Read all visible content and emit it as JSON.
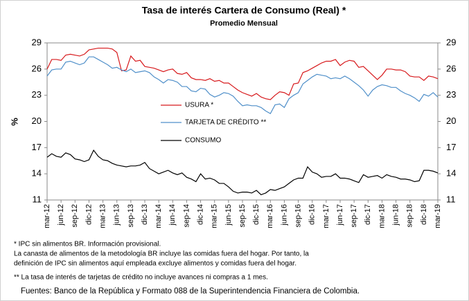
{
  "chart_data": {
    "type": "line",
    "title": "Tasa de interés Cartera de Consumo (Real) *",
    "subtitle": "Promedio Mensual",
    "ylabel": "%",
    "categories": [
      "mar-12",
      null,
      null,
      "jun-12",
      null,
      null,
      "sep-12",
      null,
      null,
      "dic-12",
      null,
      null,
      "mar-13",
      null,
      null,
      "jun-13",
      null,
      null,
      "sep-13",
      null,
      null,
      "dic-13",
      null,
      null,
      "mar-14",
      null,
      null,
      "jun-14",
      null,
      null,
      "sep-14",
      null,
      null,
      "dic-14",
      null,
      null,
      "mar-15",
      null,
      null,
      "jun-15",
      null,
      null,
      "sep-15",
      null,
      null,
      "dic-15",
      null,
      null,
      "mar-16",
      null,
      null,
      "jun-16",
      null,
      null,
      "sep-16",
      null,
      null,
      "dic-16",
      null,
      null,
      "mar-17",
      null,
      null,
      "jun-17",
      null,
      null,
      "sep-17",
      null,
      null,
      "dic-17",
      null,
      null,
      "mar-18",
      null,
      null,
      "jun-18",
      null,
      null,
      "sep-18",
      null,
      null,
      "dic-18",
      null,
      null,
      "mar-19"
    ],
    "series": [
      {
        "name": "USURA *",
        "color": "#d7191c",
        "values": [
          26.0,
          27.1,
          27.1,
          27.0,
          27.6,
          27.7,
          27.6,
          27.5,
          27.7,
          28.2,
          28.3,
          28.4,
          28.4,
          28.4,
          28.3,
          27.9,
          25.8,
          25.9,
          27.5,
          26.9,
          27.0,
          26.3,
          26.2,
          26.1,
          25.9,
          25.7,
          25.9,
          26.0,
          25.5,
          25.4,
          25.6,
          25.0,
          24.8,
          24.8,
          24.7,
          24.9,
          24.6,
          24.7,
          24.4,
          24.4,
          24.0,
          23.6,
          23.3,
          23.1,
          22.9,
          23.2,
          22.8,
          22.6,
          22.5,
          23.0,
          23.4,
          23.3,
          23.0,
          24.3,
          24.4,
          25.6,
          25.8,
          26.1,
          26.4,
          26.7,
          26.9,
          26.9,
          27.1,
          26.4,
          26.8,
          27.0,
          26.9,
          26.2,
          26.3,
          25.8,
          25.3,
          24.8,
          25.3,
          26.0,
          26.0,
          25.9,
          25.9,
          25.7,
          25.2,
          25.1,
          25.1,
          24.7,
          25.2,
          25.1,
          24.9
        ]
      },
      {
        "name": "TARJETA DE CRÉDITO **",
        "color": "#4f8fc9",
        "values": [
          25.2,
          25.9,
          26.0,
          26.0,
          26.8,
          26.9,
          26.7,
          26.5,
          26.7,
          27.4,
          27.4,
          27.1,
          26.8,
          26.5,
          26.1,
          26.2,
          25.9,
          25.7,
          26.0,
          25.6,
          25.7,
          25.8,
          25.6,
          25.1,
          24.8,
          24.4,
          24.8,
          24.7,
          24.5,
          24.0,
          24.0,
          23.5,
          23.4,
          23.8,
          23.7,
          23.1,
          22.8,
          23.0,
          23.3,
          23.2,
          22.9,
          22.3,
          21.8,
          21.9,
          21.8,
          21.8,
          21.6,
          21.2,
          20.9,
          21.9,
          22.0,
          21.6,
          22.6,
          23.0,
          23.3,
          24.3,
          24.7,
          25.1,
          25.4,
          25.3,
          25.2,
          24.9,
          25.0,
          24.9,
          25.2,
          24.9,
          24.5,
          24.1,
          23.6,
          22.9,
          23.6,
          24.0,
          24.2,
          24.1,
          23.9,
          23.9,
          23.5,
          23.2,
          23.0,
          22.7,
          22.3,
          23.1,
          22.9,
          23.3,
          22.8
        ]
      },
      {
        "name": "CONSUMO",
        "color": "#000000",
        "values": [
          15.9,
          16.3,
          16.0,
          15.9,
          16.4,
          16.2,
          15.7,
          15.6,
          15.4,
          15.6,
          16.7,
          16.0,
          15.6,
          15.5,
          15.2,
          15.0,
          14.9,
          14.8,
          14.9,
          14.9,
          15.0,
          15.3,
          14.6,
          14.3,
          14.0,
          14.2,
          14.4,
          14.1,
          13.9,
          14.1,
          13.6,
          13.4,
          13.1,
          14.0,
          13.4,
          13.5,
          13.3,
          12.9,
          12.9,
          12.5,
          12.0,
          11.8,
          11.9,
          11.9,
          11.8,
          12.1,
          11.6,
          11.8,
          12.2,
          12.1,
          12.3,
          12.5,
          12.9,
          13.3,
          13.5,
          13.5,
          14.8,
          14.2,
          14.0,
          13.6,
          13.7,
          13.7,
          14.0,
          13.5,
          13.5,
          13.4,
          13.2,
          13.0,
          13.9,
          13.6,
          13.7,
          13.8,
          13.5,
          13.9,
          13.7,
          13.6,
          13.4,
          13.4,
          13.3,
          13.1,
          13.2,
          14.4,
          14.4,
          14.3,
          14.1
        ]
      }
    ],
    "ylim": [
      11,
      29
    ],
    "yticks": [
      11,
      14,
      17,
      20,
      23,
      26,
      29
    ],
    "y2lim": [
      11,
      29
    ],
    "y2ticks": [
      11,
      14,
      17,
      20,
      23,
      26,
      29
    ],
    "notes": [
      "* IPC sin alimentos BR. Información provisional.",
      "La canasta de alimentos de la metodología BR incluye las comidas fuera del hogar. Por tanto, la",
      "definición de IPC sin alimentos aquí empleada excluye alimentos y comidas fuera del hogar.",
      "** La tasa de interés de tarjetas de crédito no incluye avances ni compras a 1 mes.",
      "Fuentes: Banco de la República y Formato 088 de la Superintendencia Financiera de Colombia."
    ]
  }
}
